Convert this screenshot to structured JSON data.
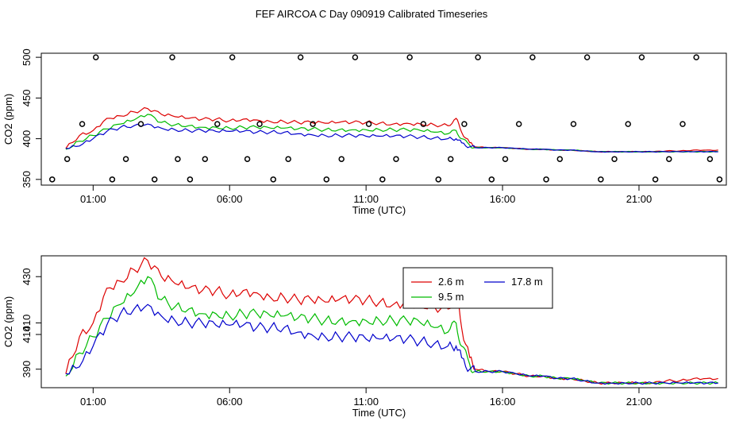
{
  "title": "FEF AIRCOA C  Day 090919  Calibrated Timeseries",
  "colors": {
    "s1": "#dd0000",
    "s2": "#00bb00",
    "s3": "#0000cc",
    "axis": "#000000",
    "flag": "#000000"
  },
  "chart_data": [
    {
      "type": "line",
      "panel": "top",
      "xlabel": "Time (UTC)",
      "ylabel": "CO2 (ppm)",
      "xlim": [
        -0.9,
        24.2
      ],
      "ylim": [
        343,
        505
      ],
      "xticks": [
        1,
        6,
        11,
        16,
        21
      ],
      "xtick_labels": [
        "01:00",
        "06:00",
        "11:00",
        "16:00",
        "21:00"
      ],
      "yticks": [
        350,
        400,
        450,
        500
      ],
      "ytick_labels": [
        "350",
        "400",
        "450",
        "500"
      ],
      "x": [
        0,
        0.5,
        1,
        1.5,
        2,
        2.5,
        3,
        3.5,
        4,
        4.5,
        5,
        5.5,
        6,
        6.5,
        7,
        7.5,
        8,
        8.5,
        9,
        9.5,
        10,
        10.5,
        11,
        11.5,
        12,
        12.5,
        13,
        13.5,
        14,
        14.3,
        14.5,
        14.8,
        15,
        15.5,
        16,
        16.5,
        17,
        17.5,
        18,
        18.5,
        19,
        19.5,
        20,
        20.5,
        21,
        21.5,
        22,
        22.5,
        23,
        23.5,
        23.9
      ],
      "series": [
        {
          "name": "2.6 m",
          "values": [
            388,
            404,
            410,
            425,
            428,
            433,
            437,
            430,
            427,
            425,
            424,
            424,
            422,
            424,
            423,
            421,
            421,
            420,
            420,
            419,
            420,
            420,
            420,
            419,
            418,
            419,
            418,
            417,
            416,
            425,
            408,
            395,
            390,
            389,
            389,
            388,
            387,
            387,
            386,
            386,
            385,
            384,
            384,
            384,
            384,
            384,
            385,
            385,
            386,
            386,
            386
          ]
        },
        {
          "name": "9.5 m",
          "values": [
            387,
            397,
            404,
            412,
            418,
            423,
            430,
            420,
            417,
            416,
            414,
            414,
            413,
            414,
            414,
            413,
            413,
            412,
            412,
            411,
            411,
            411,
            411,
            411,
            411,
            411,
            410,
            408,
            406,
            410,
            400,
            392,
            389,
            389,
            389,
            388,
            387,
            387,
            386,
            386,
            385,
            384,
            384,
            384,
            384,
            384,
            384,
            384,
            384,
            384,
            384
          ]
        },
        {
          "name": "17.8 m",
          "values": [
            388,
            391,
            400,
            409,
            414,
            416,
            418,
            413,
            411,
            410,
            410,
            409,
            409,
            409,
            408,
            408,
            408,
            406,
            405,
            404,
            404,
            404,
            403,
            403,
            403,
            403,
            402,
            401,
            400,
            400,
            395,
            390,
            389,
            389,
            389,
            388,
            387,
            387,
            386,
            386,
            385,
            384,
            384,
            384,
            384,
            384,
            384,
            384,
            384,
            384,
            384
          ]
        }
      ],
      "flag_markers": [
        {
          "x": -0.5,
          "y": 350
        },
        {
          "x": 0.05,
          "y": 375
        },
        {
          "x": 0.6,
          "y": 418
        },
        {
          "x": 1.1,
          "y": 500
        },
        {
          "x": 1.7,
          "y": 350
        },
        {
          "x": 2.2,
          "y": 375
        },
        {
          "x": 2.75,
          "y": 418
        },
        {
          "x": 3.25,
          "y": 350
        },
        {
          "x": 3.9,
          "y": 500
        },
        {
          "x": 4.1,
          "y": 375
        },
        {
          "x": 4.55,
          "y": 350
        },
        {
          "x": 5.1,
          "y": 375
        },
        {
          "x": 5.55,
          "y": 418
        },
        {
          "x": 6.1,
          "y": 500
        },
        {
          "x": 6.65,
          "y": 375
        },
        {
          "x": 7.1,
          "y": 418
        },
        {
          "x": 7.6,
          "y": 350
        },
        {
          "x": 8.15,
          "y": 375
        },
        {
          "x": 8.6,
          "y": 500
        },
        {
          "x": 9.05,
          "y": 418
        },
        {
          "x": 9.55,
          "y": 350
        },
        {
          "x": 10.1,
          "y": 375
        },
        {
          "x": 10.6,
          "y": 500
        },
        {
          "x": 11.1,
          "y": 418
        },
        {
          "x": 11.6,
          "y": 350
        },
        {
          "x": 12.1,
          "y": 375
        },
        {
          "x": 12.6,
          "y": 500
        },
        {
          "x": 13.1,
          "y": 418
        },
        {
          "x": 13.65,
          "y": 350
        },
        {
          "x": 14.1,
          "y": 375
        },
        {
          "x": 14.6,
          "y": 418
        },
        {
          "x": 15.1,
          "y": 500
        },
        {
          "x": 15.6,
          "y": 350
        },
        {
          "x": 16.1,
          "y": 375
        },
        {
          "x": 16.6,
          "y": 418
        },
        {
          "x": 17.1,
          "y": 500
        },
        {
          "x": 17.6,
          "y": 350
        },
        {
          "x": 18.1,
          "y": 375
        },
        {
          "x": 18.6,
          "y": 418
        },
        {
          "x": 19.1,
          "y": 500
        },
        {
          "x": 19.6,
          "y": 350
        },
        {
          "x": 20.1,
          "y": 375
        },
        {
          "x": 20.6,
          "y": 418
        },
        {
          "x": 21.1,
          "y": 500
        },
        {
          "x": 21.6,
          "y": 350
        },
        {
          "x": 22.1,
          "y": 375
        },
        {
          "x": 22.6,
          "y": 418
        },
        {
          "x": 23.1,
          "y": 500
        },
        {
          "x": 23.6,
          "y": 375
        },
        {
          "x": 23.95,
          "y": 350
        }
      ]
    },
    {
      "type": "line",
      "panel": "bottom",
      "xlabel": "Time (UTC)",
      "ylabel": "CO2 (ppm)",
      "xlim": [
        -0.9,
        24.2
      ],
      "ylim": [
        382,
        439
      ],
      "xticks": [
        1,
        6,
        11,
        16,
        21
      ],
      "xtick_labels": [
        "01:00",
        "06:00",
        "11:00",
        "16:00",
        "21:00"
      ],
      "yticks": [
        390,
        410,
        430
      ],
      "ytick_labels": [
        "390",
        "410",
        "410",
        "430"
      ],
      "ytick_values_for_labels": [
        390,
        405,
        410,
        430
      ],
      "x": [
        0,
        0.5,
        1,
        1.5,
        2,
        2.5,
        3,
        3.5,
        4,
        4.5,
        5,
        5.5,
        6,
        6.5,
        7,
        7.5,
        8,
        8.5,
        9,
        9.5,
        10,
        10.5,
        11,
        11.5,
        12,
        12.5,
        13,
        13.5,
        14,
        14.3,
        14.5,
        14.8,
        15,
        15.5,
        16,
        16.5,
        17,
        17.5,
        18,
        18.5,
        19,
        19.5,
        20,
        20.5,
        21,
        21.5,
        22,
        22.5,
        23,
        23.5,
        23.9
      ],
      "series": [
        {
          "name": "2.6 m",
          "values": [
            388,
            404,
            410,
            425,
            428,
            433,
            437,
            430,
            427,
            425,
            424,
            424,
            422,
            424,
            423,
            421,
            421,
            420,
            420,
            419,
            420,
            420,
            420,
            419,
            418,
            419,
            418,
            417,
            416,
            425,
            408,
            395,
            390,
            389,
            389,
            388,
            387,
            387,
            386,
            386,
            385,
            384,
            384,
            384,
            384,
            384,
            385,
            385,
            386,
            386,
            386
          ]
        },
        {
          "name": "9.5 m",
          "values": [
            387,
            397,
            404,
            412,
            418,
            423,
            430,
            420,
            417,
            416,
            414,
            414,
            413,
            414,
            414,
            413,
            413,
            412,
            412,
            411,
            411,
            411,
            411,
            411,
            411,
            411,
            410,
            408,
            406,
            410,
            400,
            392,
            389,
            389,
            389,
            388,
            387,
            387,
            386,
            386,
            385,
            384,
            384,
            384,
            384,
            384,
            384,
            384,
            384,
            384,
            384
          ]
        },
        {
          "name": "17.8 m",
          "values": [
            388,
            391,
            400,
            409,
            414,
            416,
            418,
            413,
            411,
            410,
            410,
            409,
            409,
            409,
            408,
            408,
            408,
            406,
            405,
            404,
            404,
            404,
            403,
            403,
            403,
            403,
            402,
            401,
            400,
            400,
            395,
            390,
            389,
            389,
            389,
            388,
            387,
            387,
            386,
            386,
            385,
            384,
            384,
            384,
            384,
            384,
            384,
            384,
            384,
            384,
            384
          ]
        }
      ],
      "legend": {
        "position": "top-center-right",
        "entries": [
          "2.6 m",
          "9.5 m",
          "17.8 m"
        ]
      }
    }
  ]
}
